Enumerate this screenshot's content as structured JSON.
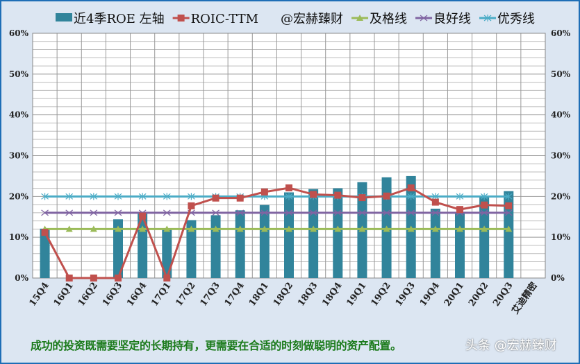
{
  "chart_data": {
    "type": "bar+line",
    "categories": [
      "15Q4",
      "16Q1",
      "16Q2",
      "16Q3",
      "16Q4",
      "17Q1",
      "17Q2",
      "17Q3",
      "17Q4",
      "18Q1",
      "18Q2",
      "18Q3",
      "18Q4",
      "19Q1",
      "19Q2",
      "19Q3",
      "19Q4",
      "20Q1",
      "20Q2",
      "20Q3",
      "艾迪精密"
    ],
    "ylim": [
      0,
      60
    ],
    "yticks": [
      "0%",
      "10%",
      "20%",
      "30%",
      "40%",
      "50%",
      "60%"
    ],
    "y2ticks": [
      "0%",
      "10%",
      "20%",
      "30%",
      "40%",
      "50%",
      "60%"
    ],
    "grid": true,
    "legend_position": "top",
    "series": [
      {
        "name": "近4季ROE 左轴",
        "type": "bar",
        "color": "#31849b",
        "values": [
          12.1,
          0,
          0,
          14.4,
          16.0,
          11.8,
          14.2,
          15.4,
          16.6,
          17.9,
          21.0,
          21.8,
          22.0,
          23.5,
          24.7,
          25.0,
          17.0,
          16.0,
          20.2,
          21.3,
          null
        ]
      },
      {
        "name": "ROIC-TTM",
        "type": "line",
        "marker": "square",
        "color": "#c0504d",
        "values": [
          11.2,
          0,
          0,
          0,
          15.2,
          0,
          17.7,
          19.6,
          19.6,
          21.1,
          22.1,
          20.5,
          20.3,
          19.7,
          20.1,
          22.1,
          18.6,
          16.8,
          17.9,
          17.7,
          null
        ]
      },
      {
        "name": "@宏赫臻财",
        "type": "label"
      },
      {
        "name": "及格线",
        "type": "line",
        "marker": "triangle",
        "color": "#9bbb59",
        "values": [
          12,
          12,
          12,
          12,
          12,
          12,
          12,
          12,
          12,
          12,
          12,
          12,
          12,
          12,
          12,
          12,
          12,
          12,
          12,
          12,
          null
        ]
      },
      {
        "name": "良好线",
        "type": "line",
        "marker": "x",
        "color": "#8064a2",
        "values": [
          16,
          16,
          16,
          16,
          16,
          16,
          16,
          16,
          16,
          16,
          16,
          16,
          16,
          16,
          16,
          16,
          16,
          16,
          16,
          16,
          null
        ]
      },
      {
        "name": "优秀线",
        "type": "line",
        "marker": "star",
        "color": "#4bacc6",
        "values": [
          20,
          20,
          20,
          20,
          20,
          20,
          20,
          20,
          20,
          20,
          20,
          20,
          20,
          20,
          20,
          20,
          20,
          20,
          20,
          20,
          null
        ]
      }
    ]
  },
  "footer": "成功的投资既需要坚定的长期持有，更需要在合适的时刻做聪明的资产配置。",
  "watermark": "头条 @宏赫臻财"
}
